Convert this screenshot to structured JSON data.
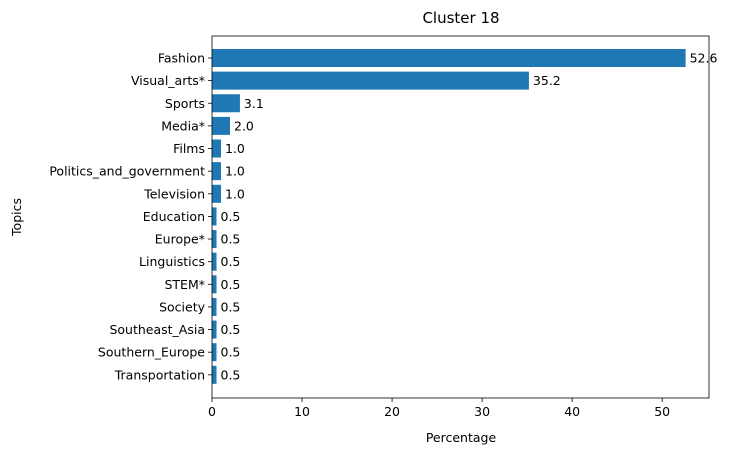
{
  "chart_data": {
    "type": "bar",
    "orientation": "horizontal",
    "title": "Cluster 18",
    "xlabel": "Percentage",
    "ylabel": "Topics",
    "xlim": [
      0,
      55.2
    ],
    "x_ticks": [
      0,
      10,
      20,
      30,
      40,
      50
    ],
    "grid": false,
    "bar_color": "#1f77b4",
    "categories": [
      "Fashion",
      "Visual_arts*",
      "Sports",
      "Media*",
      "Films",
      "Politics_and_government",
      "Television",
      "Education",
      "Europe*",
      "Linguistics",
      "STEM*",
      "Society",
      "Southeast_Asia",
      "Southern_Europe",
      "Transportation"
    ],
    "values": [
      52.6,
      35.2,
      3.1,
      2.0,
      1.0,
      1.0,
      1.0,
      0.5,
      0.5,
      0.5,
      0.5,
      0.5,
      0.5,
      0.5,
      0.5
    ],
    "value_labels": [
      "52.6",
      "35.2",
      "3.1",
      "2.0",
      "1.0",
      "1.0",
      "1.0",
      "0.5",
      "0.5",
      "0.5",
      "0.5",
      "0.5",
      "0.5",
      "0.5",
      "0.5"
    ]
  }
}
